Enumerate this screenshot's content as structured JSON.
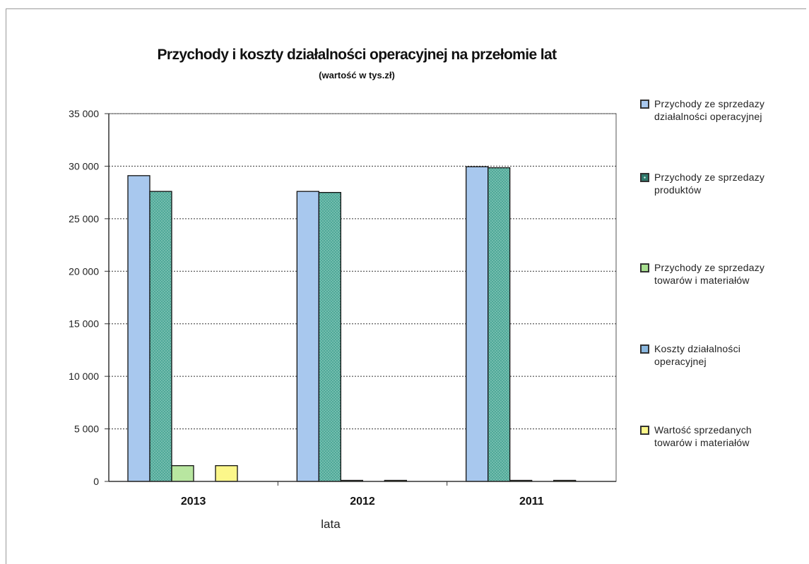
{
  "chart_data": {
    "type": "bar",
    "title": "Przychody i koszty działalności operacyjnej na przełomie lat",
    "subtitle": "(wartość w tys.zł)",
    "xlabel": "lata",
    "ylabel": "",
    "ylim": [
      0,
      35000
    ],
    "yticks": [
      "35 000",
      "30 000",
      "25 000",
      "20 000",
      "15 000",
      "10 000",
      "5 000",
      "0"
    ],
    "ytick_values": [
      35000,
      30000,
      25000,
      20000,
      15000,
      10000,
      5000,
      0
    ],
    "categories": [
      "2013",
      "2012",
      "2011"
    ],
    "grid": true,
    "legend_position": "right",
    "series": [
      {
        "name": "Przychody ze sprzedaży działalności operacyjnej",
        "values": [
          29100,
          27600,
          29950
        ],
        "color": "#a8c8ee"
      },
      {
        "name": "Przychody ze sprzedaży produktów",
        "values": [
          27600,
          27500,
          29850
        ],
        "color": "#4fa898"
      },
      {
        "name": "Przychody ze sprzedaży towarów i materiałów",
        "values": [
          1500,
          100,
          100
        ],
        "color": "#b8e6a0"
      },
      {
        "name": "Koszty działalności operacyjnej",
        "values": [
          0,
          0,
          0
        ],
        "color": "#8ab8e0"
      },
      {
        "name": "Wartość sprzedanych towarów i materiałów",
        "values": [
          1500,
          100,
          100
        ],
        "color": "#fcf78a"
      }
    ]
  },
  "legend": {
    "items": [
      {
        "line1": "Przychody ze sprzedazy",
        "line2": "działalności operacyjnej",
        "color": "#a8c8ee"
      },
      {
        "line1": "Przychody ze sprzedazy",
        "line2": "produktów",
        "color": "#2e7a6c"
      },
      {
        "line1": "Przychody ze sprzedazy",
        "line2": "towarów i materiałów",
        "color": "#a8e090"
      },
      {
        "line1": "Koszty działalności",
        "line2": "operacyjnej",
        "color": "#8ab8e0"
      },
      {
        "line1": "Wartość sprzedanych",
        "line2": "towarów i materiałów",
        "color": "#fcf78a"
      }
    ]
  }
}
